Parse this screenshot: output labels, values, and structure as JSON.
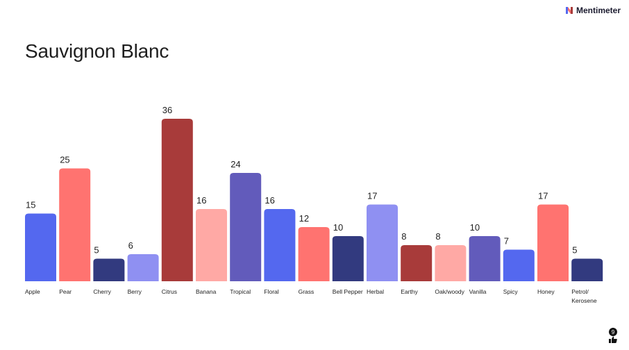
{
  "brand": {
    "name": "Mentimeter",
    "icon": "mentimeter-logo-icon"
  },
  "slide": {
    "title": "Sauvignon Blanc"
  },
  "reactions": {
    "count": "9",
    "icon": "thumbs-up-icon"
  },
  "colors": {
    "blue": "#5468ef",
    "coral": "#ff7370",
    "navy": "#323a7f",
    "lavender": "#8f90f2",
    "crimson": "#a83b3a",
    "pink": "#ffa9a5",
    "indigo": "#625bbb"
  },
  "chart_data": {
    "type": "bar",
    "categories": [
      "Apple",
      "Pear",
      "Cherry",
      "Berry",
      "Citrus",
      "Banana",
      "Tropical",
      "Floral",
      "Grass",
      "Bell Pepper",
      "Herbal",
      "Earthy",
      "Oak/woody",
      "Vanilla",
      "Spicy",
      "Honey",
      "Petrol/ Kerosene"
    ],
    "values": [
      15,
      25,
      5,
      6,
      36,
      16,
      24,
      16,
      12,
      10,
      17,
      8,
      8,
      10,
      7,
      17,
      5
    ],
    "bar_colors": [
      "#5468ef",
      "#ff7370",
      "#323a7f",
      "#8f90f2",
      "#a83b3a",
      "#ffa9a5",
      "#625bbb",
      "#5468ef",
      "#ff7370",
      "#323a7f",
      "#8f90f2",
      "#a83b3a",
      "#ffa9a5",
      "#625bbb",
      "#5468ef",
      "#ff7370",
      "#323a7f"
    ],
    "title": "Sauvignon Blanc",
    "xlabel": "",
    "ylabel": "",
    "ylim": [
      0,
      36
    ],
    "grid": false,
    "legend": "none"
  }
}
